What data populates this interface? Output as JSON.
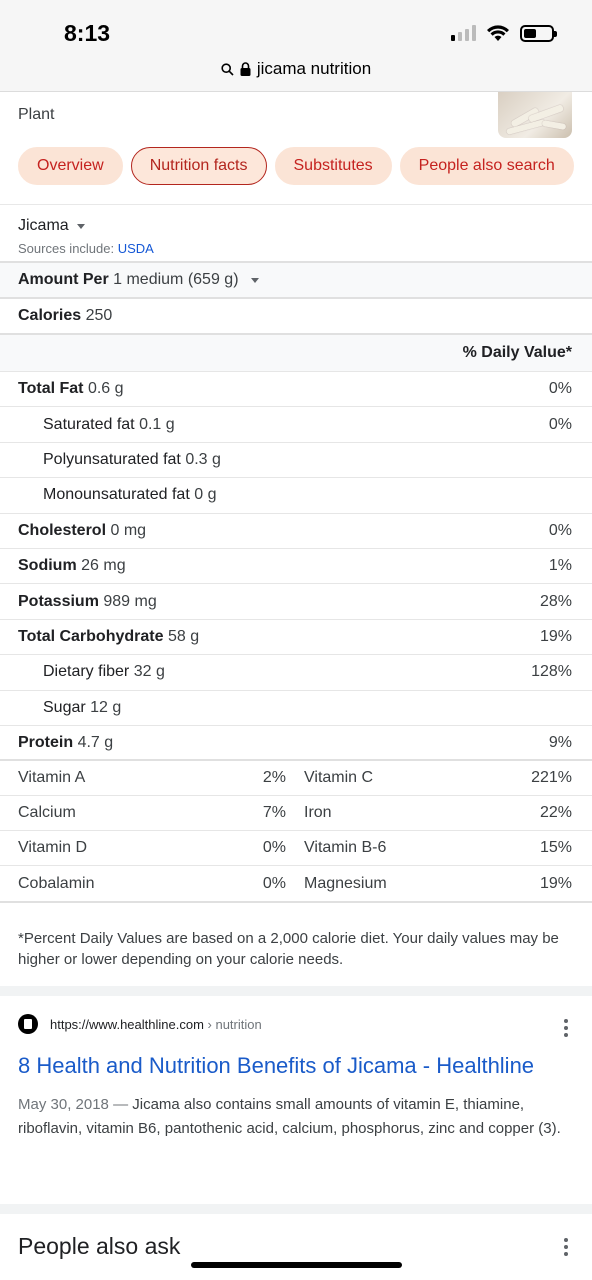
{
  "status_bar": {
    "time": "8:13"
  },
  "address_bar": {
    "query": "jicama nutrition"
  },
  "header": {
    "subtitle": "Plant"
  },
  "chips": [
    {
      "label": "Overview",
      "active": false
    },
    {
      "label": "Nutrition facts",
      "active": true
    },
    {
      "label": "Substitutes",
      "active": false
    },
    {
      "label": "People also search",
      "active": false
    }
  ],
  "nutrition": {
    "food": "Jicama",
    "sources_prefix": "Sources include: ",
    "sources_link": "USDA",
    "amount_label": "Amount Per",
    "amount_value": "1 medium (659 g)",
    "calories_label": "Calories",
    "calories_value": "250",
    "dv_header": "% Daily Value*",
    "rows": [
      {
        "label": "Total Fat",
        "value": "0.6 g",
        "pct": "0%",
        "bold": true
      },
      {
        "label": "Saturated fat",
        "value": "0.1 g",
        "pct": "0%",
        "bold": false
      },
      {
        "label": "Polyunsaturated fat",
        "value": "0.3 g",
        "pct": "",
        "bold": false
      },
      {
        "label": "Monounsaturated fat",
        "value": "0 g",
        "pct": "",
        "bold": false
      },
      {
        "label": "Cholesterol",
        "value": "0 mg",
        "pct": "0%",
        "bold": true
      },
      {
        "label": "Sodium",
        "value": "26 mg",
        "pct": "1%",
        "bold": true
      },
      {
        "label": "Potassium",
        "value": "989 mg",
        "pct": "28%",
        "bold": true
      },
      {
        "label": "Total Carbohydrate",
        "value": "58 g",
        "pct": "19%",
        "bold": true
      },
      {
        "label": "Dietary fiber",
        "value": "32 g",
        "pct": "128%",
        "bold": false
      },
      {
        "label": "Sugar",
        "value": "12 g",
        "pct": "",
        "bold": false
      },
      {
        "label": "Protein",
        "value": "4.7 g",
        "pct": "9%",
        "bold": true
      }
    ],
    "vitamins": [
      {
        "l_name": "Vitamin A",
        "l_pct": "2%",
        "r_name": "Vitamin C",
        "r_pct": "221%"
      },
      {
        "l_name": "Calcium",
        "l_pct": "7%",
        "r_name": "Iron",
        "r_pct": "22%"
      },
      {
        "l_name": "Vitamin D",
        "l_pct": "0%",
        "r_name": "Vitamin B-6",
        "r_pct": "15%"
      },
      {
        "l_name": "Cobalamin",
        "l_pct": "0%",
        "r_name": "Magnesium",
        "r_pct": "19%"
      }
    ],
    "footnote": "*Percent Daily Values are based on a 2,000 calorie diet. Your daily values may be higher or lower depending on your calorie needs."
  },
  "result": {
    "url": "https://www.healthline.com",
    "path": " › nutrition",
    "title": "8 Health and Nutrition Benefits of Jicama - Healthline",
    "date": "May 30, 2018",
    "dash": " — ",
    "snippet": "Jicama also contains small amounts of vitamin E, thiamine, riboflavin, vitamin B6, pantothenic acid, calcium, phosphorus, zinc and copper (3)."
  },
  "people_also_ask": "People also ask"
}
